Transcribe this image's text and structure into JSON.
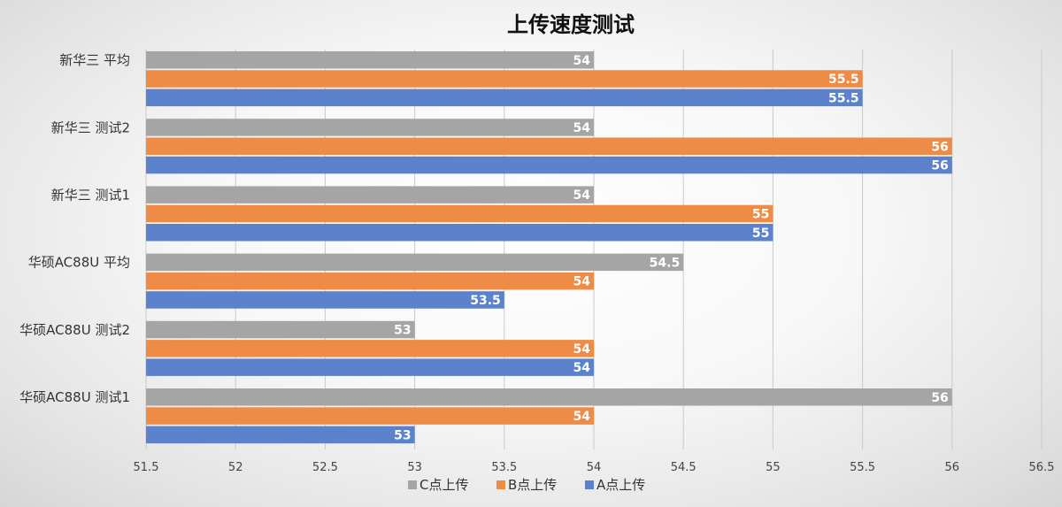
{
  "chart_data": {
    "type": "bar",
    "orientation": "horizontal",
    "title": "上传速度测试",
    "categories": [
      "新华三 平均",
      "新华三 测试2",
      "新华三 测试1",
      "华硕AC88U 平均",
      "华硕AC88U 测试2",
      "华硕AC88U 测试1"
    ],
    "series": [
      {
        "name": "C点上传",
        "color": "#a5a5a5",
        "values": [
          54,
          54,
          54,
          54.5,
          53,
          56
        ]
      },
      {
        "name": "B点上传",
        "color": "#ed8b47",
        "values": [
          55.5,
          56,
          55,
          54,
          54,
          54
        ]
      },
      {
        "name": "A点上传",
        "color": "#5b82cb",
        "values": [
          55.5,
          56,
          55,
          53.5,
          54,
          53
        ]
      }
    ],
    "xlim": [
      51.5,
      56.5
    ],
    "xticks": [
      "51.5",
      "52",
      "52.5",
      "53",
      "53.5",
      "54",
      "54.5",
      "55",
      "55.5",
      "56",
      "56.5"
    ],
    "grid": true,
    "legend_position": "bottom"
  }
}
